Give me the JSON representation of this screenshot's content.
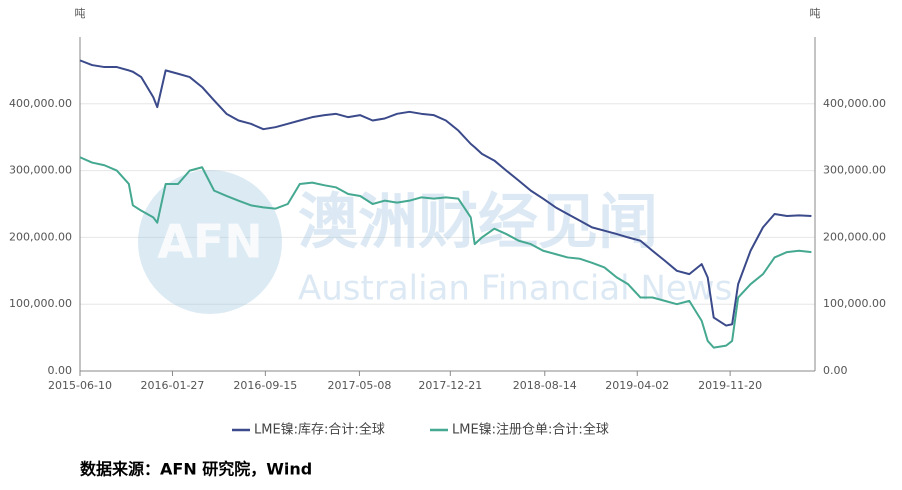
{
  "chart_data": {
    "type": "line",
    "y_unit_left": "吨",
    "y_unit_right": "吨",
    "watermark": {
      "logo": "AFN",
      "name": "澳洲财经见闻",
      "english": "Australian Financial News"
    },
    "source": "数据来源：AFN 研究院，Wind",
    "x": [
      "2015-06-10",
      "2015-07-10",
      "2015-08-10",
      "2015-09-10",
      "2015-10-10",
      "2015-10-20",
      "2015-11-10",
      "2015-12-10",
      "2015-12-20",
      "2016-01-10",
      "2016-02-10",
      "2016-03-10",
      "2016-04-10",
      "2016-05-10",
      "2016-06-10",
      "2016-07-10",
      "2016-08-10",
      "2016-09-10",
      "2016-10-10",
      "2016-11-10",
      "2016-12-10",
      "2017-01-10",
      "2017-02-10",
      "2017-03-10",
      "2017-04-10",
      "2017-05-10",
      "2017-06-10",
      "2017-07-10",
      "2017-08-10",
      "2017-09-10",
      "2017-10-10",
      "2017-11-10",
      "2017-12-10",
      "2018-01-10",
      "2018-02-10",
      "2018-02-20",
      "2018-03-10",
      "2018-04-10",
      "2018-05-10",
      "2018-06-10",
      "2018-07-10",
      "2018-08-10",
      "2018-09-10",
      "2018-10-10",
      "2018-11-10",
      "2018-12-10",
      "2019-01-10",
      "2019-02-10",
      "2019-03-10",
      "2019-04-10",
      "2019-05-10",
      "2019-06-10",
      "2019-07-10",
      "2019-08-10",
      "2019-09-10",
      "2019-09-25",
      "2019-10-10",
      "2019-11-10",
      "2019-11-25",
      "2019-12-10",
      "2020-01-10",
      "2020-02-10",
      "2020-03-10",
      "2020-04-10",
      "2020-05-10",
      "2020-06-10"
    ],
    "series": [
      {
        "name": "LME镍:库存:合计:全球",
        "color": "#3b4a8a",
        "values": [
          465000,
          458000,
          455000,
          455000,
          450000,
          448000,
          440000,
          410000,
          395000,
          450000,
          445000,
          440000,
          425000,
          405000,
          385000,
          375000,
          370000,
          362000,
          365000,
          370000,
          375000,
          380000,
          383000,
          385000,
          380000,
          383000,
          375000,
          378000,
          385000,
          388000,
          385000,
          383000,
          375000,
          360000,
          340000,
          335000,
          325000,
          315000,
          300000,
          285000,
          270000,
          258000,
          245000,
          235000,
          225000,
          215000,
          210000,
          205000,
          200000,
          195000,
          180000,
          165000,
          150000,
          145000,
          160000,
          140000,
          80000,
          68000,
          70000,
          130000,
          180000,
          215000,
          235000,
          232000,
          233000,
          232000
        ]
      },
      {
        "name": "LME镍:注册仓单:合计:全球",
        "color": "#45a890",
        "values": [
          320000,
          312000,
          308000,
          300000,
          280000,
          248000,
          240000,
          230000,
          222000,
          280000,
          280000,
          300000,
          305000,
          270000,
          262000,
          255000,
          248000,
          245000,
          243000,
          250000,
          280000,
          282000,
          278000,
          275000,
          265000,
          262000,
          250000,
          255000,
          252000,
          255000,
          260000,
          258000,
          260000,
          258000,
          230000,
          190000,
          200000,
          213000,
          205000,
          195000,
          190000,
          180000,
          175000,
          170000,
          168000,
          162000,
          155000,
          140000,
          130000,
          110000,
          110000,
          105000,
          100000,
          105000,
          75000,
          45000,
          35000,
          38000,
          45000,
          110000,
          130000,
          145000,
          170000,
          178000,
          180000,
          178000
        ]
      }
    ],
    "xlim": [
      "2015-06-10",
      "2020-06-19"
    ],
    "xticks": [
      "2015-06-10",
      "2016-01-27",
      "2016-09-15",
      "2017-05-08",
      "2017-12-21",
      "2018-08-14",
      "2019-04-02",
      "2019-11-20"
    ],
    "ylim": [
      0,
      500000
    ],
    "yticks": [
      {
        "value": 0,
        "label": "0.00"
      },
      {
        "value": 100000,
        "label": "100,000.00"
      },
      {
        "value": 200000,
        "label": "200,000.00"
      },
      {
        "value": 300000,
        "label": "300,000.00"
      },
      {
        "value": 400000,
        "label": "400,000.00"
      }
    ],
    "grid": true,
    "legend": "bottom"
  }
}
